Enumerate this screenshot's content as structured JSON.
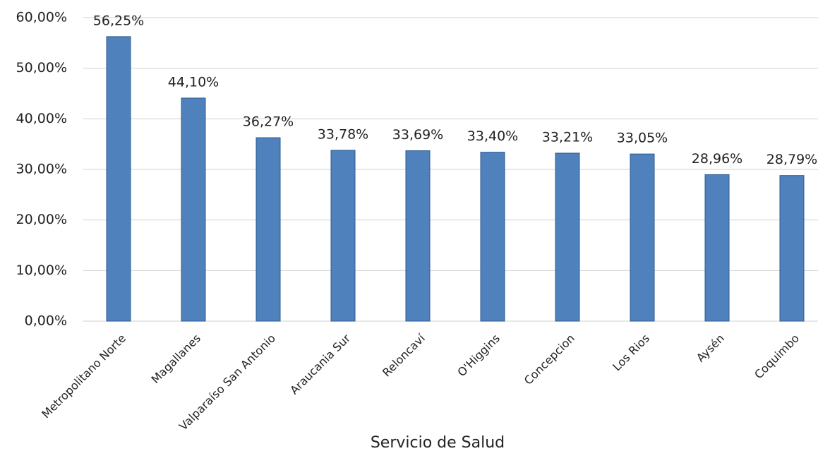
{
  "chart_data": {
    "type": "bar",
    "x_label": "Servicio de Salud",
    "categories": [
      "Metropolitano Norte",
      "Magallanes",
      "Valparaíso San Antonio",
      "Araucania Sur",
      "Reloncaví",
      "O'Higgins",
      "Concepcion",
      "Los Rios",
      "Aysén",
      "Coquimbo"
    ],
    "values": [
      56.25,
      44.1,
      36.27,
      33.78,
      33.69,
      33.4,
      33.21,
      33.05,
      28.96,
      28.79
    ],
    "value_labels": [
      "56,25%",
      "44,10%",
      "36,27%",
      "33,78%",
      "33,69%",
      "33,40%",
      "33,21%",
      "33,05%",
      "28,96%",
      "28,79%"
    ],
    "color": "#4f81bd",
    "ylim": [
      0,
      60
    ],
    "yticks": [
      {
        "value": 0,
        "label": "0,00%"
      },
      {
        "value": 10,
        "label": "10,00%"
      },
      {
        "value": 20,
        "label": "20,00%"
      },
      {
        "value": 30,
        "label": "30,00%"
      },
      {
        "value": 40,
        "label": "40,00%"
      },
      {
        "value": 50,
        "label": "50,00%"
      },
      {
        "value": 60,
        "label": "60,00%"
      }
    ],
    "grid": true
  }
}
